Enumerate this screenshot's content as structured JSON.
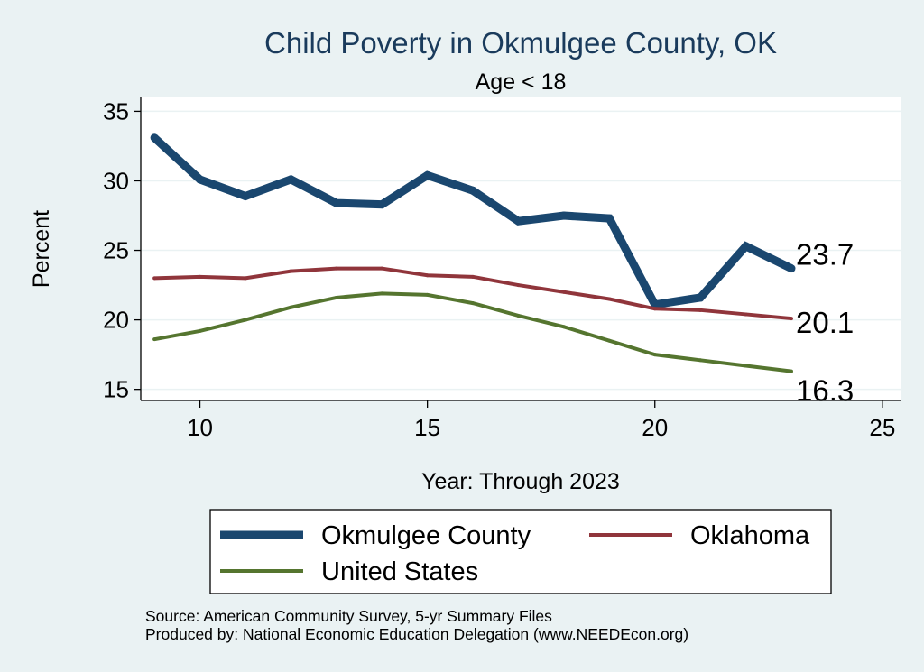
{
  "chart_data": {
    "type": "line",
    "title": "Child Poverty in Okmulgee County, OK",
    "subtitle": "Age < 18",
    "xlabel": "Year: Through 2023",
    "ylabel": "Percent",
    "xlim": [
      8.7,
      25.4
    ],
    "ylim": [
      14.2,
      36
    ],
    "xticks": [
      10,
      15,
      20,
      25
    ],
    "yticks": [
      15,
      20,
      25,
      30,
      35
    ],
    "grid": "horizontal",
    "legend_position": "bottom",
    "x": [
      9,
      10,
      11,
      12,
      13,
      14,
      15,
      16,
      17,
      18,
      19,
      20,
      21,
      22,
      23
    ],
    "series": [
      {
        "name": "Okmulgee County",
        "color": "#1a476f",
        "values": [
          33.1,
          30.1,
          28.9,
          30.1,
          28.4,
          28.3,
          30.4,
          29.3,
          27.1,
          27.5,
          27.3,
          21.1,
          21.6,
          25.3,
          23.7
        ],
        "end_label": "23.7"
      },
      {
        "name": "Oklahoma",
        "color": "#90353b",
        "values": [
          23.0,
          23.1,
          23.0,
          23.5,
          23.7,
          23.7,
          23.2,
          23.1,
          22.5,
          22.0,
          21.5,
          20.8,
          20.7,
          20.4,
          20.1
        ],
        "end_label": "20.1"
      },
      {
        "name": "United States",
        "color": "#55752f",
        "values": [
          18.6,
          19.2,
          20.0,
          20.9,
          21.6,
          21.9,
          21.8,
          21.2,
          20.3,
          19.5,
          18.5,
          17.5,
          17.1,
          16.7,
          16.3
        ],
        "end_label": "16.3"
      }
    ],
    "notes": [
      "Source: American Community Survey, 5-yr Summary Files",
      "Produced by: National Economic Education Delegation (www.NEEDEcon.org)"
    ]
  }
}
